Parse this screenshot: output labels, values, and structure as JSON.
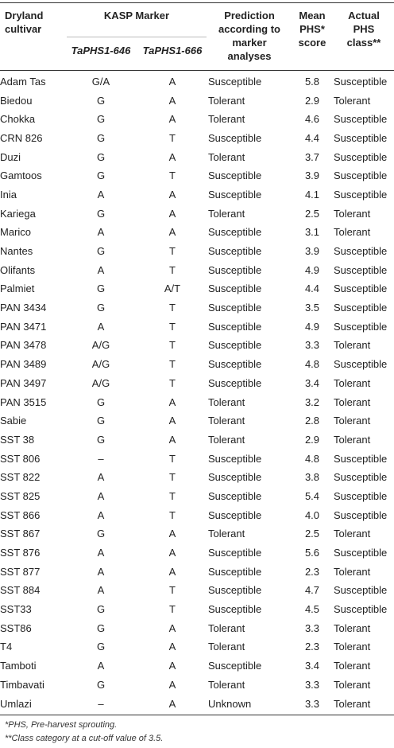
{
  "headers": {
    "cultivar": [
      "Dryland",
      "cultivar"
    ],
    "kasp_marker": "KASP Marker",
    "marker_646": "TaPHS1-646",
    "marker_666": "TaPHS1-666",
    "prediction": [
      "Prediction",
      "according to",
      "marker",
      "analyses"
    ],
    "mean_phs": [
      "Mean",
      "PHS*",
      "score"
    ],
    "actual_phs": [
      "Actual",
      "PHS",
      "class**"
    ]
  },
  "rows": [
    [
      "Adam Tas",
      "G/A",
      "A",
      "Susceptible",
      "5.8",
      "Susceptible"
    ],
    [
      "Biedou",
      "G",
      "A",
      "Tolerant",
      "2.9",
      "Tolerant"
    ],
    [
      "Chokka",
      "G",
      "A",
      "Tolerant",
      "4.6",
      "Susceptible"
    ],
    [
      "CRN 826",
      "G",
      "T",
      "Susceptible",
      "4.4",
      "Susceptible"
    ],
    [
      "Duzi",
      "G",
      "A",
      "Tolerant",
      "3.7",
      "Susceptible"
    ],
    [
      "Gamtoos",
      "G",
      "T",
      "Susceptible",
      "3.9",
      "Susceptible"
    ],
    [
      "Inia",
      "A",
      "A",
      "Susceptible",
      "4.1",
      "Susceptible"
    ],
    [
      "Kariega",
      "G",
      "A",
      "Tolerant",
      "2.5",
      "Tolerant"
    ],
    [
      "Marico",
      "A",
      "A",
      "Susceptible",
      "3.1",
      "Tolerant"
    ],
    [
      "Nantes",
      "G",
      "T",
      "Susceptible",
      "3.9",
      "Susceptible"
    ],
    [
      "Olifants",
      "A",
      "T",
      "Susceptible",
      "4.9",
      "Susceptible"
    ],
    [
      "Palmiet",
      "G",
      "A/T",
      "Susceptible",
      "4.4",
      "Susceptible"
    ],
    [
      "PAN 3434",
      "G",
      "T",
      "Susceptible",
      "3.5",
      "Susceptible"
    ],
    [
      "PAN 3471",
      "A",
      "T",
      "Susceptible",
      "4.9",
      "Susceptible"
    ],
    [
      "PAN 3478",
      "A/G",
      "T",
      "Susceptible",
      "3.3",
      "Tolerant"
    ],
    [
      "PAN 3489",
      "A/G",
      "T",
      "Susceptible",
      "4.8",
      "Susceptible"
    ],
    [
      "PAN 3497",
      "A/G",
      "T",
      "Susceptible",
      "3.4",
      "Tolerant"
    ],
    [
      "PAN 3515",
      "G",
      "A",
      "Tolerant",
      "3.2",
      "Tolerant"
    ],
    [
      "Sabie",
      "G",
      "A",
      "Tolerant",
      "2.8",
      "Tolerant"
    ],
    [
      "SST 38",
      "G",
      "A",
      "Tolerant",
      "2.9",
      "Tolerant"
    ],
    [
      "SST 806",
      "–",
      "T",
      "Susceptible",
      "4.8",
      "Susceptible"
    ],
    [
      "SST 822",
      "A",
      "T",
      "Susceptible",
      "3.8",
      "Susceptible"
    ],
    [
      "SST 825",
      "A",
      "T",
      "Susceptible",
      "5.4",
      "Susceptible"
    ],
    [
      "SST 866",
      "A",
      "T",
      "Susceptible",
      "4.0",
      "Susceptible"
    ],
    [
      "SST 867",
      "G",
      "A",
      "Tolerant",
      "2.5",
      "Tolerant"
    ],
    [
      "SST 876",
      "A",
      "A",
      "Susceptible",
      "5.6",
      "Susceptible"
    ],
    [
      "SST 877",
      "A",
      "A",
      "Susceptible",
      "2.3",
      "Tolerant"
    ],
    [
      "SST 884",
      "A",
      "T",
      "Susceptible",
      "4.7",
      "Susceptible"
    ],
    [
      "SST33",
      "G",
      "T",
      "Susceptible",
      "4.5",
      "Susceptible"
    ],
    [
      "SST86",
      "G",
      "A",
      "Tolerant",
      "3.3",
      "Tolerant"
    ],
    [
      "T4",
      "G",
      "A",
      "Tolerant",
      "2.3",
      "Tolerant"
    ],
    [
      "Tamboti",
      "A",
      "A",
      "Susceptible",
      "3.4",
      "Tolerant"
    ],
    [
      "Timbavati",
      "G",
      "A",
      "Tolerant",
      "3.3",
      "Tolerant"
    ],
    [
      "Umlazi",
      "–",
      "A",
      "Unknown",
      "3.3",
      "Tolerant"
    ]
  ],
  "footnotes": [
    "*PHS, Pre-harvest sprouting.",
    "**Class category at a cut-off value of 3.5."
  ]
}
